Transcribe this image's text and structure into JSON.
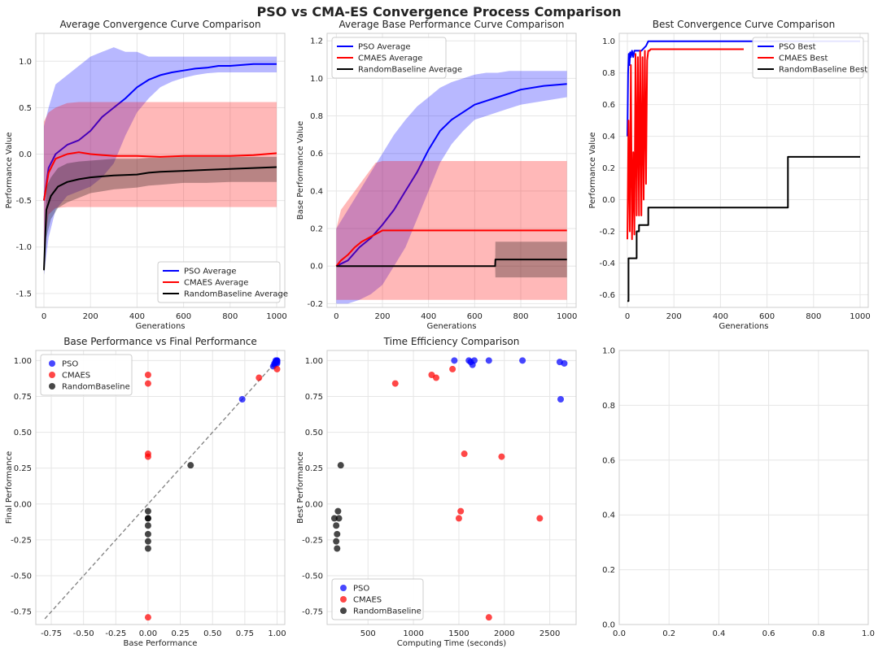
{
  "figure": {
    "title": "PSO vs CMA-ES Convergence Process Comparison"
  },
  "colors": {
    "pso": "#0000ff",
    "cmaes": "#ff0000",
    "random": "#000000",
    "diag": "#808080"
  },
  "chart_data": [
    {
      "id": "avg_conv",
      "type": "line",
      "title": "Average Convergence Curve Comparison",
      "xlabel": "Generations",
      "ylabel": "Performance Value",
      "xlim": [
        -35,
        1035
      ],
      "ylim": [
        -1.65,
        1.3
      ],
      "xticks": [
        0,
        200,
        400,
        600,
        800,
        1000
      ],
      "yticks": [
        -1.5,
        -1.0,
        -0.5,
        0.0,
        0.5,
        1.0
      ],
      "grid": true,
      "legend": "lower-right",
      "series": [
        {
          "name": "PSO Average",
          "color": "pso",
          "x": [
            0,
            20,
            50,
            100,
            150,
            200,
            250,
            300,
            350,
            400,
            450,
            500,
            550,
            600,
            650,
            700,
            750,
            800,
            900,
            1000
          ],
          "y": [
            -0.5,
            -0.15,
            0.0,
            0.1,
            0.15,
            0.25,
            0.4,
            0.5,
            0.6,
            0.72,
            0.8,
            0.85,
            0.88,
            0.9,
            0.92,
            0.93,
            0.95,
            0.95,
            0.97,
            0.97
          ],
          "band_low": [
            -1.3,
            -0.9,
            -0.6,
            -0.45,
            -0.4,
            -0.35,
            -0.25,
            -0.1,
            0.2,
            0.45,
            0.6,
            0.72,
            0.78,
            0.82,
            0.85,
            0.87,
            0.88,
            0.88,
            0.88,
            0.88
          ],
          "band_high": [
            0.3,
            0.5,
            0.75,
            0.85,
            0.95,
            1.05,
            1.1,
            1.15,
            1.1,
            1.1,
            1.05,
            1.05,
            1.05,
            1.05,
            1.05,
            1.05,
            1.05,
            1.05,
            1.05,
            1.05
          ]
        },
        {
          "name": "CMAES Average",
          "color": "cmaes",
          "x": [
            0,
            20,
            50,
            100,
            150,
            200,
            300,
            400,
            500,
            600,
            700,
            800,
            900,
            1000
          ],
          "y": [
            -0.5,
            -0.2,
            -0.05,
            0.0,
            0.02,
            0.0,
            -0.02,
            -0.02,
            -0.03,
            -0.02,
            -0.02,
            -0.02,
            -0.01,
            0.01
          ],
          "band_low": [
            -1.0,
            -0.65,
            -0.58,
            -0.57,
            -0.57,
            -0.57,
            -0.57,
            -0.57,
            -0.57,
            -0.57,
            -0.57,
            -0.57,
            -0.57,
            -0.57
          ],
          "band_high": [
            0.35,
            0.45,
            0.5,
            0.55,
            0.56,
            0.56,
            0.56,
            0.56,
            0.56,
            0.56,
            0.56,
            0.56,
            0.56,
            0.56
          ]
        },
        {
          "name": "RandomBaseline Average",
          "color": "random",
          "x": [
            0,
            10,
            30,
            60,
            100,
            150,
            200,
            250,
            300,
            400,
            450,
            500,
            600,
            700,
            800,
            900,
            1000
          ],
          "y": [
            -1.25,
            -0.6,
            -0.45,
            -0.35,
            -0.3,
            -0.27,
            -0.25,
            -0.24,
            -0.23,
            -0.22,
            -0.2,
            -0.19,
            -0.18,
            -0.17,
            -0.16,
            -0.15,
            -0.14
          ],
          "band_low": [
            -1.3,
            -0.9,
            -0.7,
            -0.58,
            -0.52,
            -0.47,
            -0.42,
            -0.4,
            -0.38,
            -0.36,
            -0.34,
            -0.33,
            -0.31,
            -0.31,
            -0.3,
            -0.3,
            -0.3
          ],
          "band_high": [
            -1.2,
            -0.35,
            -0.25,
            -0.15,
            -0.1,
            -0.08,
            -0.07,
            -0.06,
            -0.05,
            -0.05,
            -0.04,
            -0.04,
            -0.03,
            -0.03,
            -0.03,
            -0.03,
            -0.03
          ]
        }
      ]
    },
    {
      "id": "base_conv",
      "type": "line",
      "title": "Average Base Performance Curve Comparison",
      "xlabel": "Generations",
      "ylabel": "Base Performance Value",
      "xlim": [
        -40,
        1040
      ],
      "ylim": [
        -0.22,
        1.24
      ],
      "xticks": [
        0,
        200,
        400,
        600,
        800,
        1000
      ],
      "yticks": [
        -0.2,
        0.0,
        0.2,
        0.4,
        0.6,
        0.8,
        1.0,
        1.2
      ],
      "grid": true,
      "legend": "upper-left",
      "series": [
        {
          "name": "PSO Average",
          "color": "pso",
          "x": [
            0,
            50,
            100,
            150,
            200,
            250,
            300,
            350,
            400,
            450,
            500,
            550,
            600,
            650,
            700,
            750,
            800,
            900,
            1000
          ],
          "y": [
            0.0,
            0.03,
            0.1,
            0.15,
            0.22,
            0.3,
            0.4,
            0.5,
            0.62,
            0.72,
            0.78,
            0.82,
            0.86,
            0.88,
            0.9,
            0.92,
            0.94,
            0.96,
            0.97
          ],
          "band_low": [
            -0.2,
            -0.2,
            -0.18,
            -0.15,
            -0.1,
            0.0,
            0.1,
            0.25,
            0.4,
            0.55,
            0.65,
            0.72,
            0.78,
            0.8,
            0.82,
            0.84,
            0.86,
            0.88,
            0.9
          ],
          "band_high": [
            0.2,
            0.3,
            0.4,
            0.5,
            0.6,
            0.7,
            0.78,
            0.85,
            0.9,
            0.95,
            0.98,
            1.0,
            1.02,
            1.03,
            1.03,
            1.04,
            1.04,
            1.04,
            1.04
          ]
        },
        {
          "name": "CMAES Average",
          "color": "cmaes",
          "x": [
            0,
            20,
            50,
            80,
            110,
            140,
            170,
            200,
            300,
            400,
            500,
            600,
            700,
            800,
            900,
            1000
          ],
          "y": [
            0.0,
            0.03,
            0.06,
            0.1,
            0.13,
            0.15,
            0.17,
            0.19,
            0.19,
            0.19,
            0.19,
            0.19,
            0.19,
            0.19,
            0.19,
            0.19
          ],
          "band_low": [
            -0.18,
            -0.18,
            -0.18,
            -0.18,
            -0.18,
            -0.18,
            -0.18,
            -0.18,
            -0.18,
            -0.18,
            -0.18,
            -0.18,
            -0.18,
            -0.18,
            -0.18,
            -0.18
          ],
          "band_high": [
            0.2,
            0.3,
            0.35,
            0.4,
            0.45,
            0.5,
            0.55,
            0.56,
            0.56,
            0.56,
            0.56,
            0.56,
            0.56,
            0.56,
            0.56,
            0.56
          ]
        },
        {
          "name": "RandomBaseline Average",
          "color": "random",
          "x": [
            0,
            100,
            200,
            300,
            400,
            500,
            600,
            689,
            690,
            700,
            800,
            900,
            1000
          ],
          "y": [
            0.0,
            0.0,
            0.0,
            0.0,
            0.0,
            0.0,
            0.0,
            0.0,
            0.035,
            0.035,
            0.035,
            0.035,
            0.035
          ],
          "band_low": [
            0.0,
            0.0,
            0.0,
            0.0,
            0.0,
            0.0,
            0.0,
            0.0,
            -0.06,
            -0.06,
            -0.06,
            -0.06,
            -0.06
          ],
          "band_high": [
            0.0,
            0.0,
            0.0,
            0.0,
            0.0,
            0.0,
            0.0,
            0.0,
            0.13,
            0.13,
            0.13,
            0.13,
            0.13
          ]
        }
      ]
    },
    {
      "id": "best_conv",
      "type": "line",
      "title": "Best Convergence Curve Comparison",
      "xlabel": "Generations",
      "ylabel": "Performance Value",
      "xlim": [
        -35,
        1035
      ],
      "ylim": [
        -0.68,
        1.05
      ],
      "xticks": [
        0,
        200,
        400,
        600,
        800,
        1000
      ],
      "yticks": [
        -0.6,
        -0.4,
        -0.2,
        0.0,
        0.2,
        0.4,
        0.6,
        0.8,
        1.0
      ],
      "grid": true,
      "legend": "upper-right",
      "series": [
        {
          "name": "PSO Best",
          "color": "pso",
          "x": [
            0,
            3,
            6,
            9,
            12,
            15,
            20,
            25,
            30,
            40,
            60,
            80,
            90,
            100,
            200,
            300,
            400,
            500,
            600,
            700,
            800,
            900,
            1000
          ],
          "y": [
            0.4,
            0.8,
            0.92,
            0.85,
            0.93,
            0.9,
            0.94,
            0.9,
            0.94,
            0.94,
            0.94,
            0.97,
            1.0,
            1.0,
            1.0,
            1.0,
            1.0,
            1.0,
            1.0,
            1.0,
            1.0,
            1.0,
            1.0
          ]
        },
        {
          "name": "CMAES Best",
          "color": "cmaes",
          "x": [
            0,
            5,
            10,
            15,
            20,
            25,
            30,
            35,
            40,
            45,
            50,
            55,
            60,
            65,
            70,
            75,
            80,
            85,
            90,
            95,
            100,
            200,
            300,
            400,
            500
          ],
          "y": [
            -0.25,
            0.5,
            -0.2,
            0.85,
            -0.25,
            0.3,
            -0.22,
            0.92,
            -0.1,
            0.9,
            -0.1,
            0.94,
            -0.1,
            0.9,
            0.0,
            0.94,
            0.1,
            0.88,
            0.94,
            0.94,
            0.95,
            0.95,
            0.95,
            0.95,
            0.95
          ]
        },
        {
          "name": "RandomBaseline Best",
          "color": "random",
          "x": [
            0,
            5,
            5,
            40,
            40,
            50,
            50,
            90,
            90,
            690,
            690,
            1000
          ],
          "y": [
            -0.64,
            -0.64,
            -0.37,
            -0.37,
            -0.2,
            -0.2,
            -0.16,
            -0.16,
            -0.05,
            -0.05,
            0.27,
            0.27
          ]
        }
      ]
    },
    {
      "id": "base_vs_final",
      "type": "scatter",
      "title": "Base Performance vs Final Performance",
      "xlabel": "Base Performance",
      "ylabel": "Final Performance",
      "xlim": [
        -0.87,
        1.06
      ],
      "ylim": [
        -0.84,
        1.07
      ],
      "xticks": [
        -0.75,
        -0.5,
        -0.25,
        0.0,
        0.25,
        0.5,
        0.75,
        1.0
      ],
      "yticks": [
        -0.75,
        -0.5,
        -0.25,
        0.0,
        0.25,
        0.5,
        0.75,
        1.0
      ],
      "grid": true,
      "legend": "upper-left",
      "diagonal": [
        -0.8,
        1.0
      ],
      "series": [
        {
          "name": "PSO",
          "color": "pso",
          "x": [
            0.73,
            0.97,
            0.98,
            0.99,
            1.0,
            1.0,
            1.0,
            0.99,
            0.98,
            1.0
          ],
          "y": [
            0.73,
            0.96,
            0.98,
            1.0,
            0.99,
            1.0,
            0.98,
            0.99,
            0.97,
            1.0
          ]
        },
        {
          "name": "CMAES",
          "color": "cmaes",
          "x": [
            0.0,
            0.0,
            0.0,
            0.0,
            0.0,
            0.86,
            1.0
          ],
          "y": [
            0.9,
            0.84,
            0.35,
            0.33,
            -0.79,
            0.88,
            0.94
          ]
        },
        {
          "name": "RandomBaseline",
          "color": "random",
          "x": [
            0.33,
            0.0,
            0.0,
            0.0,
            0.0,
            0.0,
            0.0,
            0.0
          ],
          "y": [
            0.27,
            -0.05,
            -0.1,
            -0.15,
            -0.21,
            -0.26,
            -0.31,
            -0.1
          ]
        }
      ]
    },
    {
      "id": "time_eff",
      "type": "scatter",
      "title": "Time Efficiency Comparison",
      "xlabel": "Computing Time (seconds)",
      "ylabel": "Best Performance",
      "xlim": [
        50,
        2790
      ],
      "ylim": [
        -0.84,
        1.07
      ],
      "xticks": [
        500,
        1000,
        1500,
        2000,
        2500
      ],
      "yticks": [
        -0.75,
        -0.5,
        -0.25,
        0.0,
        0.25,
        0.5,
        0.75,
        1.0
      ],
      "grid": true,
      "legend": "lower-left",
      "series": [
        {
          "name": "PSO",
          "color": "pso",
          "x": [
            1450,
            1610,
            1630,
            1650,
            1670,
            1830,
            2200,
            2610,
            2660,
            2620
          ],
          "y": [
            1.0,
            1.0,
            0.99,
            0.97,
            1.0,
            1.0,
            1.0,
            0.99,
            0.98,
            0.73
          ]
        },
        {
          "name": "CMAES",
          "color": "cmaes",
          "x": [
            800,
            1200,
            1250,
            1430,
            1500,
            1520,
            1560,
            1830,
            1970,
            2390
          ],
          "y": [
            0.84,
            0.9,
            0.88,
            0.94,
            -0.1,
            -0.05,
            0.35,
            -0.79,
            0.33,
            -0.1
          ]
        },
        {
          "name": "RandomBaseline",
          "color": "random",
          "x": [
            130,
            150,
            170,
            160,
            150,
            180,
            160,
            200
          ],
          "y": [
            -0.1,
            -0.15,
            -0.05,
            -0.21,
            -0.26,
            -0.1,
            -0.31,
            0.27
          ]
        }
      ]
    },
    {
      "id": "empty",
      "type": "scatter",
      "title": "",
      "xlabel": "",
      "ylabel": "",
      "xlim": [
        0,
        1
      ],
      "ylim": [
        0,
        1
      ],
      "xticks": [
        0.0,
        0.2,
        0.4,
        0.6,
        0.8,
        1.0
      ],
      "yticks": [
        0.0,
        0.2,
        0.4,
        0.6,
        0.8,
        1.0
      ],
      "grid": true,
      "series": []
    }
  ]
}
